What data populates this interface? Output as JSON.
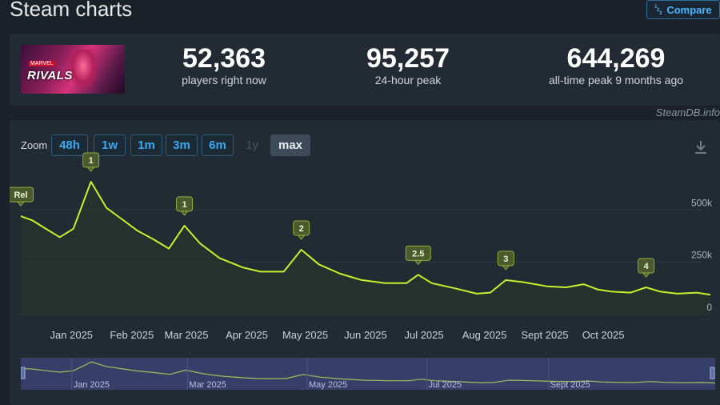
{
  "page": {
    "title": "Steam charts",
    "compare_label": "Compare",
    "compare_icon": "1/2/3"
  },
  "game": {
    "logo_text": "RIVALS",
    "logo_top": "MARVEL"
  },
  "stats": [
    {
      "value": "52,363",
      "label": "players right now"
    },
    {
      "value": "95,257",
      "label": "24-hour peak"
    },
    {
      "value": "644,269",
      "label": "all-time peak 9 months ago"
    }
  ],
  "watermark": "SteamDB.info",
  "zoom": {
    "label": "Zoom",
    "options": [
      {
        "label": "48h",
        "state": "normal"
      },
      {
        "label": "1w",
        "state": "normal"
      },
      {
        "label": "1m",
        "state": "normal"
      },
      {
        "label": "3m",
        "state": "normal"
      },
      {
        "label": "6m",
        "state": "normal"
      },
      {
        "label": "1y",
        "state": "disabled"
      },
      {
        "label": "max",
        "state": "active"
      }
    ]
  },
  "chart_data": {
    "type": "line",
    "series": [
      {
        "points": [
          [
            "2024-12-06",
            470000
          ],
          [
            "2024-12-12",
            450000
          ],
          [
            "2024-12-18",
            415000
          ],
          [
            "2024-12-26",
            370000
          ],
          [
            "2025-01-02",
            410000
          ],
          [
            "2025-01-11",
            635000
          ],
          [
            "2025-01-19",
            510000
          ],
          [
            "2025-01-27",
            455000
          ],
          [
            "2025-02-04",
            400000
          ],
          [
            "2025-02-12",
            360000
          ],
          [
            "2025-02-20",
            315000
          ],
          [
            "2025-02-28",
            425000
          ],
          [
            "2025-03-08",
            340000
          ],
          [
            "2025-03-18",
            270000
          ],
          [
            "2025-03-30",
            225000
          ],
          [
            "2025-04-08",
            205000
          ],
          [
            "2025-04-20",
            205000
          ],
          [
            "2025-04-29",
            310000
          ],
          [
            "2025-05-08",
            240000
          ],
          [
            "2025-05-19",
            195000
          ],
          [
            "2025-05-30",
            165000
          ],
          [
            "2025-06-11",
            150000
          ],
          [
            "2025-06-22",
            150000
          ],
          [
            "2025-06-28",
            190000
          ],
          [
            "2025-07-05",
            150000
          ],
          [
            "2025-07-17",
            125000
          ],
          [
            "2025-07-28",
            100000
          ],
          [
            "2025-08-04",
            105000
          ],
          [
            "2025-08-12",
            165000
          ],
          [
            "2025-08-21",
            155000
          ],
          [
            "2025-09-02",
            135000
          ],
          [
            "2025-09-12",
            130000
          ],
          [
            "2025-09-21",
            145000
          ],
          [
            "2025-09-28",
            120000
          ],
          [
            "2025-10-05",
            110000
          ],
          [
            "2025-10-15",
            105000
          ],
          [
            "2025-10-23",
            130000
          ],
          [
            "2025-10-30",
            110000
          ],
          [
            "2025-11-08",
            100000
          ],
          [
            "2025-11-18",
            105000
          ],
          [
            "2025-11-25",
            95000
          ]
        ]
      }
    ],
    "x_ticks": [
      {
        "label": "Jan 2025",
        "date": "2025-01-01"
      },
      {
        "label": "Feb 2025",
        "date": "2025-02-01"
      },
      {
        "label": "Mar 2025",
        "date": "2025-03-01"
      },
      {
        "label": "Apr 2025",
        "date": "2025-04-01"
      },
      {
        "label": "May 2025",
        "date": "2025-05-01"
      },
      {
        "label": "Jun 2025",
        "date": "2025-06-01"
      },
      {
        "label": "Jul 2025",
        "date": "2025-07-01"
      },
      {
        "label": "Aug 2025",
        "date": "2025-08-01"
      },
      {
        "label": "Sept 2025",
        "date": "2025-09-01"
      },
      {
        "label": "Oct 2025",
        "date": "2025-10-01"
      }
    ],
    "y_ticks": [
      {
        "label": "0",
        "value": 0
      },
      {
        "label": "250k",
        "value": 250000
      },
      {
        "label": "500k",
        "value": 500000
      }
    ],
    "xlim": [
      "2024-12-06",
      "2025-11-25"
    ],
    "ylim": [
      0,
      700000
    ],
    "flags": [
      {
        "label": "Rel",
        "date": "2024-12-06"
      },
      {
        "label": "1",
        "date": "2025-01-11"
      },
      {
        "label": "1",
        "date": "2025-02-28"
      },
      {
        "label": "2",
        "date": "2025-04-29"
      },
      {
        "label": "2.5",
        "date": "2025-06-28"
      },
      {
        "label": "3",
        "date": "2025-08-12"
      },
      {
        "label": "4",
        "date": "2025-10-23"
      }
    ],
    "navigator_ticks": [
      {
        "label": "Jan 2025",
        "date": "2025-01-01"
      },
      {
        "label": "Mar 2025",
        "date": "2025-03-01"
      },
      {
        "label": "May 2025",
        "date": "2025-05-01"
      },
      {
        "label": "Jul 2025",
        "date": "2025-07-01"
      },
      {
        "label": "Sept 2025",
        "date": "2025-09-01"
      }
    ],
    "grid": true,
    "colors": {
      "line": "#c6f02c",
      "flag_bg": "#4b5a2d",
      "flag_border": "#8fae3a",
      "grid": "#2f3a45",
      "navigator": "#3a4470"
    }
  }
}
